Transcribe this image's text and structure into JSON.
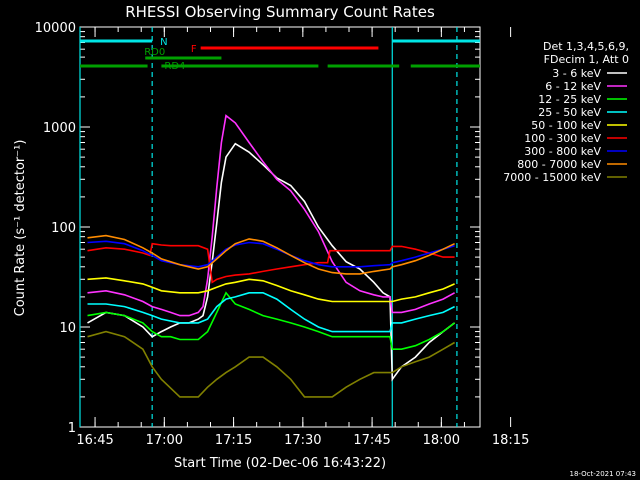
{
  "chart_data": {
    "type": "line",
    "title": "RHESSI Observing Summary Count Rates",
    "xlabel": "Start Time (02-Dec-06 16:43:22)",
    "ylabel": "Count Rate (s⁻¹ detector⁻¹)",
    "ylog": true,
    "ylim": [
      1,
      10000
    ],
    "xlim_min": [
      -1.63,
      85
    ],
    "x_ticks_min": [
      1.63,
      16.63,
      31.63,
      46.63,
      61.63,
      76.63,
      91.63
    ],
    "x_tick_labels": [
      "16:45",
      "17:00",
      "17:15",
      "17:30",
      "17:45",
      "18:00",
      "18:15"
    ],
    "y_ticks": [
      1,
      10,
      100,
      1000,
      10000
    ],
    "y_tick_labels": [
      "1",
      "10",
      "100",
      "1000",
      "10000"
    ],
    "legend_header": [
      "Det 1,3,4,5,6,9,",
      "FDecim 1, Att 0"
    ],
    "legend_position": "right",
    "timestamp": "18-Oct-2021 07:43",
    "flags": [
      {
        "label": "N",
        "color": "#00e6e6",
        "segments": [
          [
            -1.63,
            14
          ]
        ],
        "row": "top"
      },
      {
        "label": "",
        "color": "#00e6e6",
        "segments": [
          [
            66,
            85
          ]
        ],
        "row": "top"
      },
      {
        "label": "F",
        "color": "#ff0000",
        "segments": [
          [
            24.5,
            63
          ]
        ],
        "row": "top2"
      },
      {
        "label": "RD0",
        "color": "#00a000",
        "segments": [
          [
            12.5,
            29
          ]
        ],
        "row": "mid"
      },
      {
        "label": "RD4",
        "color": "#00a000",
        "segments": [
          [
            -1.63,
            13
          ],
          [
            16,
            50
          ],
          [
            52,
            67.5
          ],
          [
            70,
            85
          ]
        ],
        "row": "low"
      }
    ],
    "vlines": [
      {
        "x": -1.63,
        "color": "#00e6e6",
        "dash": false
      },
      {
        "x": 14,
        "color": "#00e6e6",
        "dash": true
      },
      {
        "x": 66,
        "color": "#00e6e6",
        "dash": false
      },
      {
        "x": 80,
        "color": "#00e6e6",
        "dash": true
      }
    ],
    "series": [
      {
        "name": "3 - 6 keV",
        "color": "#ffffff",
        "x": [
          0,
          4,
          8,
          12,
          14,
          16,
          18,
          20,
          22,
          24,
          25,
          26,
          27,
          28,
          29,
          30,
          32,
          35,
          38,
          41,
          44,
          47,
          50,
          53,
          56,
          59,
          62,
          64,
          65.5,
          66,
          68,
          71,
          74,
          77,
          79.5
        ],
        "y": [
          11,
          14,
          13,
          10,
          8,
          9,
          10,
          11,
          11,
          12,
          13,
          20,
          45,
          110,
          280,
          500,
          680,
          560,
          420,
          310,
          260,
          180,
          100,
          65,
          45,
          38,
          28,
          22,
          20,
          3,
          4,
          5,
          7,
          9,
          11
        ]
      },
      {
        "name": "6 - 12 keV",
        "color": "#ff33ff",
        "x": [
          0,
          4,
          8,
          12,
          14,
          16,
          18,
          20,
          22,
          24,
          25,
          26,
          27,
          28,
          29,
          30,
          32,
          35,
          38,
          41,
          44,
          47,
          50,
          53,
          56,
          59,
          62,
          64,
          65.5,
          66,
          68,
          71,
          74,
          77,
          79.5
        ],
        "y": [
          22,
          23,
          21,
          18,
          16,
          15,
          14,
          13,
          13,
          14,
          16,
          30,
          80,
          250,
          700,
          1300,
          1100,
          700,
          450,
          300,
          230,
          150,
          90,
          45,
          28,
          23,
          21,
          20,
          20,
          14,
          14,
          15,
          17,
          19,
          22
        ]
      },
      {
        "name": "12 - 25 keV",
        "color": "#00ff00",
        "x": [
          0,
          4,
          8,
          12,
          14,
          16,
          18,
          20,
          22,
          24,
          26,
          28,
          30,
          32,
          35,
          38,
          41,
          44,
          47,
          50,
          53,
          56,
          59,
          62,
          64,
          65.5,
          66,
          68,
          71,
          74,
          77,
          79.5
        ],
        "y": [
          13,
          14,
          13,
          11,
          9,
          8,
          8,
          7.5,
          7.5,
          7.5,
          9,
          14,
          22,
          17,
          15,
          13,
          12,
          11,
          10,
          9,
          8,
          8,
          8,
          8,
          8,
          8,
          6,
          6,
          6.5,
          7.5,
          9,
          11
        ]
      },
      {
        "name": "25 - 50 keV",
        "color": "#00ffff",
        "x": [
          0,
          4,
          8,
          12,
          14,
          16,
          20,
          24,
          26,
          28,
          30,
          32,
          35,
          38,
          41,
          44,
          47,
          50,
          53,
          56,
          59,
          62,
          65.5,
          66,
          68,
          71,
          74,
          77,
          79.5
        ],
        "y": [
          17,
          17,
          16,
          14,
          13,
          12,
          11,
          11,
          12,
          16,
          19,
          20,
          22,
          22,
          19,
          15,
          12,
          10,
          9,
          9,
          9,
          9,
          9,
          11,
          11,
          12,
          13,
          14,
          16
        ]
      },
      {
        "name": "50 - 100 keV",
        "color": "#ffff00",
        "x": [
          0,
          4,
          8,
          12,
          14,
          16,
          20,
          24,
          26,
          28,
          30,
          32,
          35,
          38,
          41,
          44,
          47,
          50,
          53,
          56,
          59,
          62,
          65.5,
          66,
          68,
          71,
          74,
          77,
          79.5
        ],
        "y": [
          30,
          31,
          29,
          27,
          25,
          23,
          22,
          22,
          23,
          25,
          27,
          28,
          30,
          29,
          26,
          23,
          21,
          19,
          18,
          18,
          18,
          18,
          18,
          18,
          19,
          20,
          22,
          24,
          27
        ]
      },
      {
        "name": "100 - 300 keV",
        "color": "#ff0000",
        "x": [
          0,
          4,
          8,
          12,
          13.5,
          14,
          16,
          18,
          20,
          24,
          26,
          27,
          28,
          30,
          32,
          35,
          38,
          41,
          44,
          47,
          50,
          52,
          52.5,
          55,
          58,
          62,
          65.5,
          66,
          68,
          71,
          74,
          77,
          79.5
        ],
        "y": [
          58,
          62,
          60,
          55,
          52,
          68,
          66,
          65,
          65,
          65,
          60,
          28,
          30,
          32,
          33,
          34,
          36,
          38,
          40,
          42,
          44,
          44,
          58,
          58,
          58,
          58,
          58,
          64,
          64,
          60,
          55,
          50,
          50
        ]
      },
      {
        "name": "300 - 800 keV",
        "color": "#0000ff",
        "x": [
          0,
          4,
          8,
          12,
          14,
          16,
          20,
          24,
          26,
          28,
          30,
          32,
          35,
          38,
          41,
          44,
          47,
          50,
          53,
          56,
          59,
          62,
          65.5,
          66,
          68,
          71,
          74,
          77,
          79.5
        ],
        "y": [
          70,
          72,
          68,
          58,
          52,
          46,
          42,
          40,
          42,
          50,
          60,
          66,
          70,
          68,
          60,
          52,
          46,
          42,
          40,
          40,
          40,
          41,
          42,
          44,
          46,
          50,
          55,
          60,
          65
        ]
      },
      {
        "name": "800 - 7000 keV",
        "color": "#ff8c00",
        "x": [
          0,
          4,
          8,
          12,
          14,
          16,
          20,
          24,
          26,
          28,
          30,
          32,
          35,
          38,
          41,
          44,
          47,
          50,
          53,
          56,
          59,
          62,
          65.5,
          66,
          68,
          71,
          74,
          77,
          79.5
        ],
        "y": [
          78,
          82,
          75,
          62,
          55,
          48,
          42,
          38,
          40,
          48,
          58,
          68,
          76,
          72,
          62,
          52,
          44,
          38,
          35,
          34,
          34,
          36,
          38,
          40,
          42,
          46,
          52,
          60,
          68
        ]
      },
      {
        "name": "7000 - 15000 keV",
        "color": "#808000",
        "x": [
          0,
          4,
          8,
          12,
          14,
          16,
          20,
          24,
          26,
          28,
          30,
          32,
          35,
          38,
          41,
          44,
          47,
          50,
          53,
          56,
          59,
          62,
          65.5,
          66,
          68,
          71,
          74,
          77,
          79.5
        ],
        "y": [
          8,
          9,
          8,
          6,
          4,
          3,
          2,
          2,
          2.5,
          3,
          3.5,
          4,
          5,
          5,
          4,
          3,
          2,
          2,
          2,
          2.5,
          3,
          3.5,
          3.5,
          3.5,
          4,
          4.5,
          5,
          6,
          7
        ]
      }
    ]
  }
}
